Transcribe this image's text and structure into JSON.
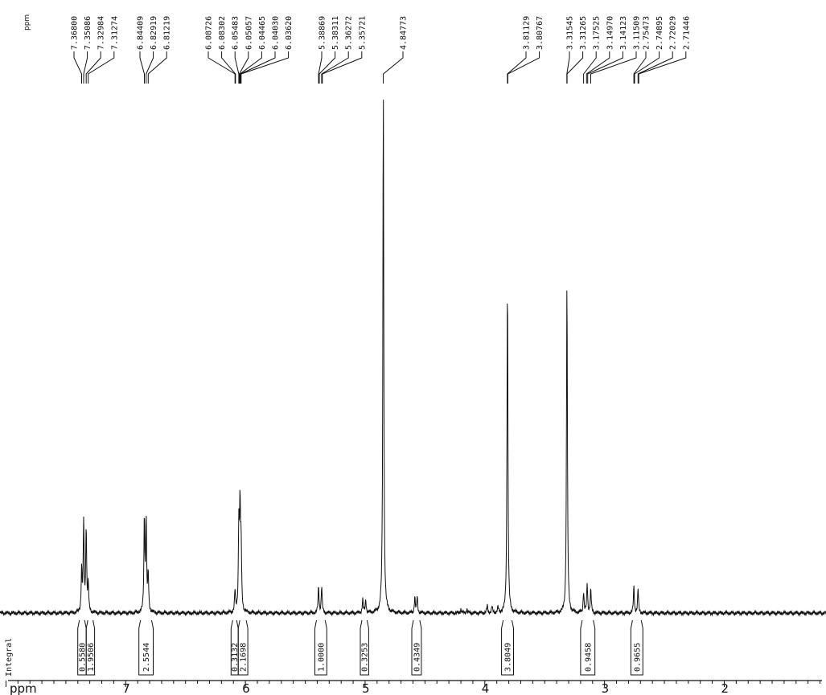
{
  "chart_data": {
    "type": "line",
    "corner_label": "ppm",
    "xlabel": "ppm",
    "integral_label": "Integral",
    "xlim": [
      8.05,
      1.15
    ],
    "x_ticks": [
      "7",
      "6",
      "5",
      "4",
      "3",
      "2"
    ],
    "peak_labels": [
      {
        "value": "7.36800",
        "shift": 7.368
      },
      {
        "value": "7.35086",
        "shift": 7.351
      },
      {
        "value": "7.32984",
        "shift": 7.33
      },
      {
        "value": "7.31274",
        "shift": 7.313
      },
      {
        "value": "6.84409",
        "shift": 6.844
      },
      {
        "value": "6.82919",
        "shift": 6.829
      },
      {
        "value": "6.81219",
        "shift": 6.812
      },
      {
        "value": "6.08726",
        "shift": 6.087
      },
      {
        "value": "6.08302",
        "shift": 6.083
      },
      {
        "value": "6.05483",
        "shift": 6.055
      },
      {
        "value": "6.05057",
        "shift": 6.051
      },
      {
        "value": "6.04465",
        "shift": 6.045
      },
      {
        "value": "6.04030",
        "shift": 6.04
      },
      {
        "value": "6.03620",
        "shift": 6.036
      },
      {
        "value": "5.38869",
        "shift": 5.389
      },
      {
        "value": "5.38311",
        "shift": 5.383
      },
      {
        "value": "5.36272",
        "shift": 5.363
      },
      {
        "value": "5.35721",
        "shift": 5.357
      },
      {
        "value": "4.84773",
        "shift": 4.848
      },
      {
        "value": "3.81129",
        "shift": 3.811
      },
      {
        "value": "3.80767",
        "shift": 3.808
      },
      {
        "value": "3.31545",
        "shift": 3.315
      },
      {
        "value": "3.31265",
        "shift": 3.313
      },
      {
        "value": "3.17525",
        "shift": 3.175
      },
      {
        "value": "3.14970",
        "shift": 3.15
      },
      {
        "value": "3.14123",
        "shift": 3.141
      },
      {
        "value": "3.11509",
        "shift": 3.115
      },
      {
        "value": "2.75473",
        "shift": 2.755
      },
      {
        "value": "2.74895",
        "shift": 2.749
      },
      {
        "value": "2.72029",
        "shift": 2.72
      },
      {
        "value": "2.71446",
        "shift": 2.714
      }
    ],
    "integrals": [
      {
        "value": "0.5580",
        "from": 7.4,
        "to": 7.33
      },
      {
        "value": "1.9506",
        "from": 7.33,
        "to": 7.26
      },
      {
        "value": "2.5544",
        "from": 6.89,
        "to": 6.77
      },
      {
        "value": "0.3132",
        "from": 6.12,
        "to": 6.06
      },
      {
        "value": "2.1698",
        "from": 6.06,
        "to": 5.98
      },
      {
        "value": "1.0000",
        "from": 5.42,
        "to": 5.32
      },
      {
        "value": "0.3253",
        "from": 5.04,
        "to": 4.97
      },
      {
        "value": "0.4349",
        "from": 4.61,
        "to": 4.53
      },
      {
        "value": "3.8049",
        "from": 3.86,
        "to": 3.76
      },
      {
        "value": "0.9458",
        "from": 3.2,
        "to": 3.08
      },
      {
        "value": "0.9655",
        "from": 2.78,
        "to": 2.68
      }
    ],
    "series": [
      {
        "peaks": [
          {
            "shift": 7.368,
            "height": 0.08
          },
          {
            "shift": 7.351,
            "height": 0.17
          },
          {
            "shift": 7.33,
            "height": 0.16
          },
          {
            "shift": 7.313,
            "height": 0.05
          },
          {
            "shift": 6.844,
            "height": 0.18
          },
          {
            "shift": 6.829,
            "height": 0.17
          },
          {
            "shift": 6.812,
            "height": 0.07
          },
          {
            "shift": 6.087,
            "height": 0.04
          },
          {
            "shift": 6.055,
            "height": 0.16
          },
          {
            "shift": 6.045,
            "height": 0.19
          },
          {
            "shift": 6.036,
            "height": 0.12
          },
          {
            "shift": 5.389,
            "height": 0.05
          },
          {
            "shift": 5.363,
            "height": 0.05
          },
          {
            "shift": 5.02,
            "height": 0.025
          },
          {
            "shift": 4.995,
            "height": 0.025
          },
          {
            "shift": 4.848,
            "height": 0.99
          },
          {
            "shift": 4.585,
            "height": 0.03
          },
          {
            "shift": 4.565,
            "height": 0.03
          },
          {
            "shift": 4.2,
            "height": 0.008
          },
          {
            "shift": 4.15,
            "height": 0.008
          },
          {
            "shift": 3.98,
            "height": 0.014
          },
          {
            "shift": 3.94,
            "height": 0.012
          },
          {
            "shift": 3.89,
            "height": 0.01
          },
          {
            "shift": 3.811,
            "height": 0.63
          },
          {
            "shift": 3.314,
            "height": 0.63
          },
          {
            "shift": 3.175,
            "height": 0.04
          },
          {
            "shift": 3.145,
            "height": 0.055
          },
          {
            "shift": 3.115,
            "height": 0.045
          },
          {
            "shift": 2.755,
            "height": 0.05
          },
          {
            "shift": 2.72,
            "height": 0.045
          }
        ]
      }
    ]
  }
}
